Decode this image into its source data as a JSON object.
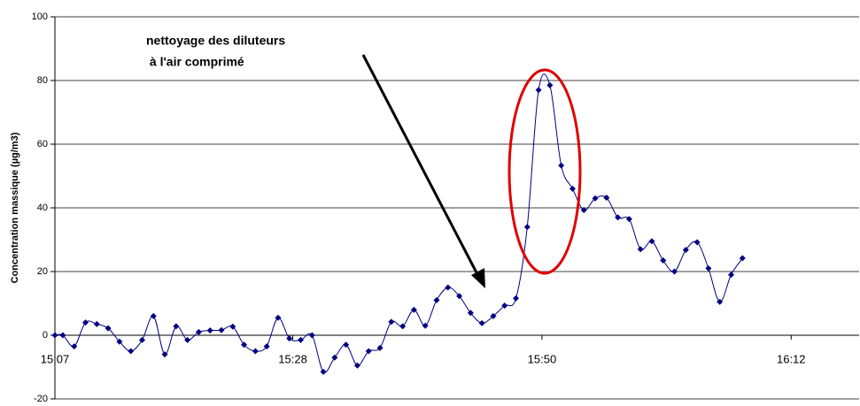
{
  "chart_data": {
    "type": "line",
    "y_label": "Concentration massique (µg/m3)",
    "annotation": [
      "nettoyage des diluteurs",
      " à l'air comprimé"
    ],
    "x": [
      907,
      907.7,
      908.7,
      909.7,
      910.7,
      911.7,
      912.7,
      913.7,
      914.7,
      915.7,
      916.7,
      917.7,
      918.7,
      919.7,
      920.7,
      921.7,
      922.7,
      923.7,
      924.7,
      925.7,
      926.7,
      927.7,
      928.7,
      929.7,
      930.7,
      931.7,
      932.7,
      933.7,
      934.7,
      935.7,
      936.7,
      937.7,
      938.7,
      939.7,
      940.7,
      941.7,
      942.7,
      943.7,
      944.7,
      945.7,
      946.7,
      947.7,
      948.7,
      949.7,
      950.7,
      951.7,
      952.7,
      953.7,
      954.7,
      955.7,
      956.7,
      957.7,
      958.7,
      959.7,
      960.7,
      961.7,
      962.7,
      963.7,
      964.7,
      965.7,
      966.7,
      967.7
    ],
    "series": [
      {
        "color": "#000080",
        "values": [
          0,
          0,
          -3.5,
          4,
          3.5,
          2.2,
          -2,
          -5,
          -1.5,
          6,
          -6,
          2.8,
          -1.5,
          1,
          1.5,
          1.6,
          2.7,
          -3,
          -5,
          -3.5,
          5.5,
          -1,
          -1.5,
          0,
          -11.5,
          -7,
          -3,
          -9.5,
          -5,
          -4,
          4.2,
          2.8,
          8,
          3,
          11,
          15,
          12.3,
          7,
          3.8,
          6,
          9.3,
          11.6,
          34,
          77,
          78.5,
          53.3,
          46,
          39.3,
          43,
          43.2,
          37,
          36.5,
          27,
          29.5,
          23.5,
          20,
          26.8,
          29.2,
          21,
          10.5,
          19,
          24.2
        ]
      }
    ],
    "xlim": [
      907,
      978
    ],
    "xticks": [
      {
        "value": 907,
        "label": "15:07"
      },
      {
        "value": 928,
        "label": "15:28"
      },
      {
        "value": 950,
        "label": "15:50"
      },
      {
        "value": 972,
        "label": "16:12"
      }
    ],
    "ylim": [
      -20,
      100
    ],
    "yticks": [
      -20,
      0,
      20,
      40,
      60,
      80,
      100
    ],
    "grid": true
  }
}
